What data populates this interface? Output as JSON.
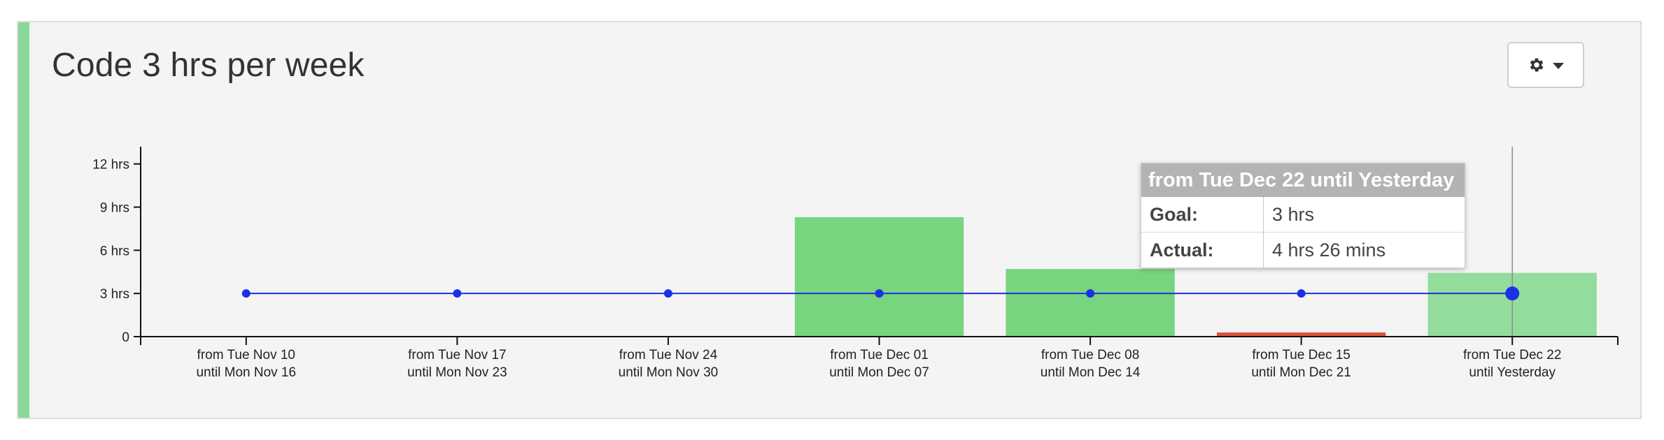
{
  "title": "Code 3 hrs per week",
  "settings": {
    "icon": "gear-icon",
    "caret": "chevron-down-icon"
  },
  "colors": {
    "accent": "#8ad89a",
    "bar_met": "#77d47f",
    "bar_current": "#93dc9c",
    "bar_missed": "#d9553a",
    "goal_line": "#1b30e6"
  },
  "chart_data": {
    "type": "bar",
    "categories": [
      [
        "from Tue Nov 10",
        "until Mon Nov 16"
      ],
      [
        "from Tue Nov 17",
        "until Mon Nov 23"
      ],
      [
        "from Tue Nov 24",
        "until Mon Nov 30"
      ],
      [
        "from Tue Dec 01",
        "until Mon Dec 07"
      ],
      [
        "from Tue Dec 08",
        "until Mon Dec 14"
      ],
      [
        "from Tue Dec 15",
        "until Mon Dec 21"
      ],
      [
        "from Tue Dec 22",
        "until Yesterday"
      ]
    ],
    "series": [
      {
        "name": "Actual",
        "type": "bar",
        "values": [
          0,
          0,
          0,
          8.3,
          4.7,
          0.2,
          4.43
        ]
      },
      {
        "name": "Goal",
        "type": "line",
        "values": [
          3,
          3,
          3,
          3,
          3,
          3,
          3
        ]
      }
    ],
    "bar_status": [
      "none",
      "none",
      "none",
      "met",
      "met",
      "missed",
      "current"
    ],
    "yticks": [
      {
        "value": 0,
        "label": "0"
      },
      {
        "value": 3,
        "label": "3 hrs"
      },
      {
        "value": 6,
        "label": "6 hrs"
      },
      {
        "value": 9,
        "label": "9 hrs"
      },
      {
        "value": 12,
        "label": "12 hrs"
      }
    ],
    "ylim": [
      0,
      13.2
    ],
    "highlight_index": 6
  },
  "tooltip": {
    "title": "from Tue Dec 22 until Yesterday",
    "rows": [
      {
        "key": "Goal:",
        "value": "3 hrs"
      },
      {
        "key": "Actual:",
        "value": "4 hrs 26 mins"
      }
    ]
  }
}
